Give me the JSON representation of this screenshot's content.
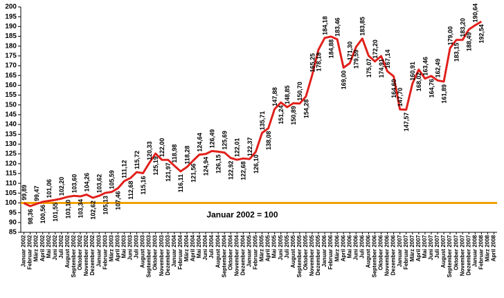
{
  "chart_data": {
    "type": "line",
    "categories": [
      "Januar 2002",
      "Februar 2002",
      "März 2002",
      "April 2002",
      "Mai 2002",
      "Juni 2002",
      "Juli 2002",
      "August 2002",
      "September 2002",
      "Oktober 2002",
      "November 2002",
      "Dezember 2002",
      "Januar 2003",
      "Februar 2003",
      "März 2003",
      "April 2003",
      "Mai 2003",
      "Juni 2003",
      "Juli 2003",
      "August 2003",
      "September 2003",
      "Oktober 2003",
      "November 2003",
      "Dezember 2003",
      "Januar 2004",
      "Februar 2004",
      "März 2004",
      "April 2004",
      "Mai 2004",
      "Juni 2004",
      "Juli 2004",
      "August 2004",
      "September 2004",
      "Oktober 2004",
      "November 2004",
      "Dezember 2004",
      "Januar 2005",
      "Februar 2005",
      "März 2005",
      "April 2005",
      "Mai 2005",
      "Juni 2005",
      "Juli 2005",
      "August 2005",
      "September 2005",
      "Oktober 2005",
      "November 2005",
      "Dezember 2005",
      "Januar 2006",
      "Februar 2006",
      "März 2006",
      "April 2006",
      "Mai 2006",
      "Juni 2006",
      "Juli 2006",
      "August 2006",
      "September 2006",
      "Oktober 2006",
      "November 2006",
      "Dezember 2006",
      "Januar 2007",
      "Februar 2007",
      "März 2007",
      "April 2007",
      "Mai 2007",
      "Juni 2007",
      "Juli 2007",
      "August 2007",
      "September 2007",
      "Oktober 2007",
      "November 2007",
      "Dezember 2007",
      "Januar 2008",
      "Februar 2008",
      "März 2008",
      "April 2008"
    ],
    "series": [
      {
        "color": "#e0201b",
        "values": [
          99.89,
          98.36,
          99.47,
          100.56,
          101.06,
          101.55,
          102.2,
          103.1,
          103.6,
          103.34,
          104.26,
          102.62,
          103.62,
          105.13,
          105.59,
          107.46,
          111.12,
          112.68,
          115.72,
          115.16,
          120.33,
          125.19,
          122.0,
          121.97,
          118.98,
          116.11,
          118.28,
          121.56,
          124.64,
          124.94,
          126.49,
          126.15,
          125.69,
          122.92,
          122.01,
          122.68,
          122.37,
          126.1,
          135.71,
          138.08,
          147.88,
          151.24,
          148.85,
          150.89,
          150.7,
          154.28,
          165.25,
          178.18,
          184.18,
          184.88,
          183.46,
          169.0,
          171.3,
          179.59,
          183.85,
          175.07,
          172.2,
          174.91,
          167.14,
          164.6,
          147.7,
          147.57,
          160.91,
          168.02,
          163.46,
          164.76,
          162.49,
          161.89,
          179.0,
          183.15,
          183.2,
          188.49,
          190.64,
          192.54,
          null,
          null
        ],
        "value_labels": [
          "99,89",
          "98,36",
          "99,47",
          "100,56",
          "101,06",
          "101,55",
          "102,20",
          "103,10",
          "103,60",
          "103,34",
          "104,26",
          "102,62",
          "103,62",
          "105,13",
          "105,59",
          "107,46",
          "111,12",
          "112,68",
          "115,72",
          "115,16",
          "120,33",
          "125,19",
          "122,00",
          "121,97",
          "118,98",
          "116,11",
          "118,28",
          "121,56",
          "124,64",
          "124,94",
          "126,49",
          "126,15",
          "125,69",
          "122,92",
          "122,01",
          "122,68",
          "122,37",
          "126,10",
          "135,71",
          "138,08",
          "147,88",
          "151,24",
          "148,85",
          "150,89",
          "150,70",
          "154,28",
          "165,25",
          "178,18",
          "184,18",
          "184,88",
          "183,46",
          "169,00",
          "171,30",
          "179,59",
          "183,85",
          "175,07",
          "172,20",
          "174,91",
          "167,14",
          "164,60",
          "147,70",
          "147,57",
          "160,91",
          "168,02",
          "163,46",
          "164,76",
          "162,49",
          "161,89",
          "179,00",
          "183,15",
          "183,20",
          "188,49",
          "190,64",
          "192,54",
          null,
          null
        ]
      }
    ],
    "reference_line": {
      "value": 100,
      "label": "Januar 2002 = 100",
      "color": "#f0a000"
    },
    "ylim": [
      85,
      200
    ],
    "yticks": [
      85,
      90,
      95,
      100,
      105,
      110,
      115,
      120,
      125,
      130,
      135,
      140,
      145,
      150,
      155,
      160,
      165,
      170,
      175,
      180,
      185,
      190,
      195,
      200
    ]
  }
}
